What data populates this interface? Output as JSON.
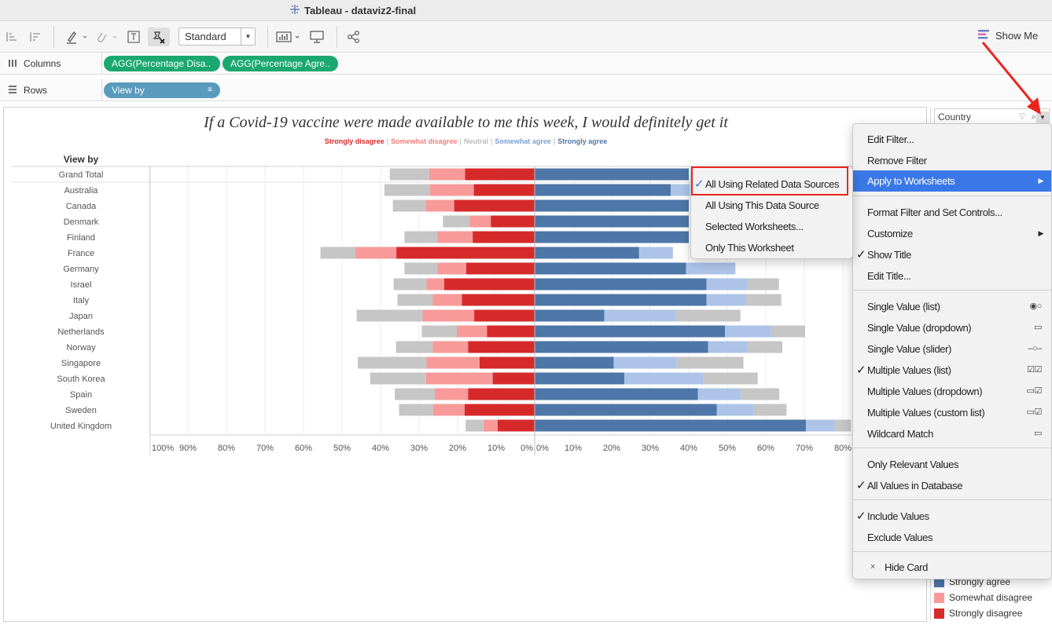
{
  "window": {
    "title": "Tableau - dataviz2-final"
  },
  "toolbar": {
    "fit": "Standard",
    "show_me": "Show Me"
  },
  "shelves": {
    "columns_label": "Columns",
    "columns_pills": [
      "AGG(Percentage Disa..",
      "AGG(Percentage Agre.."
    ],
    "rows_label": "Rows",
    "rows_pills": [
      "View by"
    ]
  },
  "colors": {
    "strongly_disagree": "#d62a2a",
    "somewhat_disagree": "#f89a9a",
    "neutral": "#c6c6c6",
    "somewhat_agree": "#adc4e8",
    "strongly_agree": "#4e76a8",
    "pill_green": "#1aa870",
    "pill_blue": "#5a9bbd",
    "highlight": "#3b78e7",
    "annotation_red": "#e8261d"
  },
  "chart_data": {
    "type": "bar",
    "subtype": "diverging-stacked-horizontal",
    "title": "If a Covid-19 vaccine were made available to me this week, I would definitely get it",
    "legend": [
      "Strongly disagree",
      "Somewhat disagree",
      "Neutral",
      "Somewhat agree",
      "Strongly agree"
    ],
    "row_header": "View by",
    "x_ticks": [
      "100%",
      "90%",
      "80%",
      "70%",
      "60%",
      "50%",
      "40%",
      "30%",
      "20%",
      "10%",
      "0%",
      "0%",
      "10%",
      "20%",
      "30%",
      "40%",
      "50%",
      "60%",
      "70%",
      "80%"
    ],
    "xlim_left": [
      0,
      100
    ],
    "xlim_right": [
      0,
      80
    ],
    "categories": [
      "Grand Total",
      "Australia",
      "Canada",
      "Denmark",
      "Finland",
      "France",
      "Germany",
      "Israel",
      "Italy",
      "Japan",
      "Netherlands",
      "Norway",
      "Singapore",
      "South Korea",
      "Spain",
      "Sweden",
      "United Kingdom"
    ],
    "series": [
      {
        "name": "Strongly disagree",
        "side": "left",
        "values": [
          18.1,
          15.8,
          20.9,
          11.4,
          16.1,
          35.9,
          17.8,
          23.5,
          18.9,
          15.7,
          12.4,
          17.3,
          14.3,
          10.9,
          17.3,
          18.2,
          9.6
        ]
      },
      {
        "name": "Somewhat disagree",
        "side": "left",
        "values": [
          9.3,
          11.5,
          7.4,
          5.5,
          9.1,
          10.7,
          7.4,
          4.6,
          7.6,
          13.4,
          7.8,
          9.2,
          13.8,
          17.3,
          8.6,
          8.2,
          3.7
        ]
      },
      {
        "name": "Neutral",
        "side": "left",
        "values": [
          10.2,
          11.7,
          8.5,
          6.9,
          8.6,
          9.0,
          8.6,
          8.5,
          9.1,
          17.1,
          9.1,
          9.5,
          17.8,
          14.5,
          10.4,
          8.8,
          4.6
        ]
      },
      {
        "name": "Strongly agree",
        "side": "right",
        "values": [
          40.0,
          35.3,
          40.0,
          40.0,
          40.0,
          27.1,
          39.3,
          44.6,
          44.6,
          18.1,
          49.4,
          45.0,
          20.5,
          23.3,
          42.4,
          47.3,
          70.4
        ]
      },
      {
        "name": "Somewhat agree",
        "side": "right",
        "values": [
          0,
          5.0,
          0,
          0,
          0,
          8.8,
          12.8,
          10.5,
          10.3,
          18.6,
          12.0,
          10.1,
          16.4,
          20.5,
          11.0,
          9.5,
          7.5
        ]
      },
      {
        "name": "Neutral",
        "side": "right",
        "values": [
          0,
          0,
          0,
          0,
          0,
          0,
          0,
          8.3,
          9.1,
          16.7,
          8.8,
          9.2,
          17.3,
          14.1,
          10.1,
          8.6,
          4.2
        ]
      }
    ]
  },
  "filter_card": {
    "title": "Country"
  },
  "legend_card": {
    "items": [
      {
        "label": "Strongly agree",
        "color": "#4e76a8"
      },
      {
        "label": "Somewhat disagree",
        "color": "#f89a9a"
      },
      {
        "label": "Strongly disagree",
        "color": "#d62a2a"
      }
    ]
  },
  "context_menu": {
    "edit_filter": "Edit Filter...",
    "remove_filter": "Remove Filter",
    "apply_to_worksheets": "Apply to Worksheets",
    "format_filter": "Format Filter and Set Controls...",
    "customize": "Customize",
    "show_title": "Show Title",
    "edit_title": "Edit Title...",
    "single_value_list": "Single Value (list)",
    "single_value_dropdown": "Single Value (dropdown)",
    "single_value_slider": "Single Value (slider)",
    "multiple_values_list": "Multiple Values (list)",
    "multiple_values_dropdown": "Multiple Values (dropdown)",
    "multiple_values_custom": "Multiple Values (custom list)",
    "wildcard_match": "Wildcard Match",
    "only_relevant": "Only Relevant Values",
    "all_values_db": "All Values in Database",
    "include_values": "Include Values",
    "exclude_values": "Exclude Values",
    "hide_card": "Hide Card"
  },
  "submenu": {
    "all_related": "All Using Related Data Sources",
    "all_this": "All Using This Data Source",
    "selected": "Selected Worksheets...",
    "only_this": "Only This Worksheet"
  }
}
